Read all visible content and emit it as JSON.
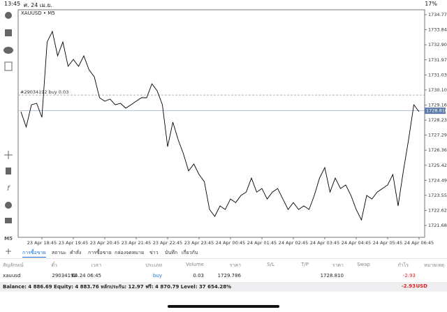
{
  "status_bar": {
    "time": "13:45",
    "date": "ศ. 24 เม.ย.",
    "battery": "17%"
  },
  "toolbar": {
    "timeframe": "M5"
  },
  "chart_data": {
    "type": "line",
    "title": "XAUUSD • M5",
    "categories": [
      null,
      null,
      null,
      null,
      "23 Apr 18:45",
      null,
      null,
      null,
      null,
      null,
      "23 Apr 19:45",
      null,
      null,
      null,
      null,
      null,
      "23 Apr 20:45",
      null,
      null,
      null,
      null,
      null,
      "23 Apr 21:45",
      null,
      null,
      null,
      null,
      null,
      "23 Apr 22:45",
      null,
      null,
      null,
      null,
      null,
      "23 Apr 23:45",
      null,
      null,
      null,
      null,
      null,
      "24 Apr 00:45",
      null,
      null,
      null,
      null,
      null,
      "24 Apr 01:45",
      null,
      null,
      null,
      null,
      null,
      "24 Apr 02:45",
      null,
      null,
      null,
      null,
      null,
      "24 Apr 03:45",
      null,
      null,
      null,
      null,
      null,
      "24 Apr 04:45",
      null,
      null,
      null,
      null,
      null,
      "24 Apr 05:45",
      null,
      null,
      null,
      null,
      null,
      "24 Apr 06:45"
    ],
    "series": [
      {
        "name": "XAUUSD",
        "color": "#000000",
        "values": [
          1728.75,
          1727.8,
          1729.18,
          1729.27,
          1728.4,
          1733.08,
          1733.73,
          1732.22,
          1733.08,
          1731.57,
          1732.0,
          1731.57,
          1732.22,
          1731.35,
          1730.92,
          1729.62,
          1729.4,
          1729.53,
          1729.18,
          1729.27,
          1728.97,
          1729.18,
          1729.4,
          1729.62,
          1729.62,
          1730.48,
          1730.05,
          1729.18,
          1726.58,
          1728.1,
          1727.02,
          1726.15,
          1725.07,
          1725.5,
          1724.85,
          1724.41,
          1722.68,
          1722.25,
          1722.9,
          1722.68,
          1723.33,
          1723.11,
          1723.55,
          1723.76,
          1724.63,
          1723.76,
          1723.98,
          1723.33,
          1723.76,
          1723.98,
          1723.33,
          1722.68,
          1723.11,
          1722.68,
          1722.9,
          1722.68,
          1723.55,
          1724.63,
          1725.28,
          1723.76,
          1724.63,
          1723.98,
          1724.2,
          1723.55,
          1722.68,
          1722.03,
          1723.55,
          1723.33,
          1723.76,
          1723.98,
          1724.2,
          1724.85,
          1722.9,
          1725.07,
          1727.02,
          1729.18,
          1728.75
        ]
      }
    ],
    "ylim": [
      1720.95,
      1735.08
    ],
    "yticks": [
      1734.775,
      {
        "value": 1733.84,
        "label": "1733.840"
      },
      1732.905,
      {
        "value": 1731.97,
        "label": "1731.970"
      },
      1731.035,
      {
        "value": 1730.1,
        "label": "1730.100"
      },
      1729.165,
      {
        "value": 1728.23,
        "label": "1728.230"
      },
      1727.295,
      {
        "value": 1726.36,
        "label": "1726.360"
      },
      1725.425,
      {
        "value": 1724.49,
        "label": "1724.490"
      },
      1723.555,
      {
        "value": 1722.62,
        "label": "1722.620"
      },
      1721.685
    ],
    "order_line": {
      "value": 1729.786,
      "label": "#29034192 buy 0.03"
    },
    "price_line": {
      "value": 1728.81,
      "label": "1728.810"
    }
  },
  "tabs": [
    "การซื้อขาย",
    "สถานะ",
    "คำสั่ง",
    "การซื้อขาย",
    "กล่องจดหมาย",
    "ข่าว",
    "บันทึก",
    "เกี่ยวกับ"
  ],
  "table": {
    "header": [
      "สัญลักษณ์",
      "ตั๋ว",
      "เวลา",
      "ประเภท",
      "Volume",
      "ราคา",
      "S/L",
      "T/P",
      "ราคา",
      "Swap",
      "กำไร",
      "หมายเหตุ"
    ],
    "row": {
      "symbol": "xauusd",
      "ticket": "29034192",
      "time": "04.24 06:45",
      "type": "buy",
      "volume": "0.03",
      "price_open": "1729.786",
      "price_current": "1728.810",
      "profit": "-2.93"
    }
  },
  "balance": {
    "text": "Balance: 4 886.69 Equity: 4 883.76 หลักประกัน: 12.97 ฟรี: 4 870.79 Level: 37 654.28%",
    "total": "-2.93",
    "currency": "USD"
  }
}
